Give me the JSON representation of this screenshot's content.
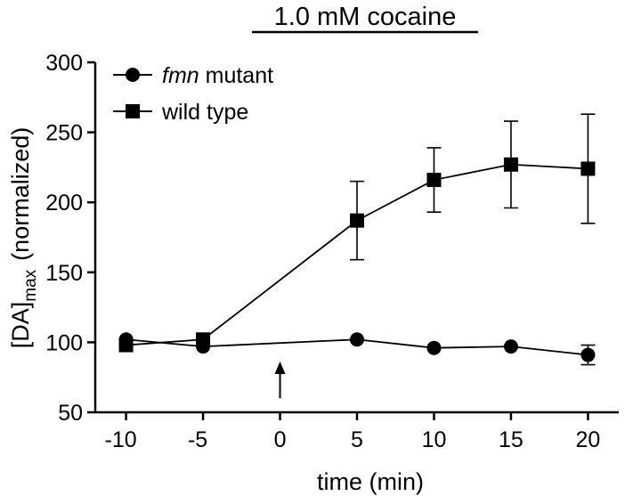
{
  "chart_data": {
    "type": "line",
    "title": "1.0 mM cocaine",
    "xlabel": "time (min)",
    "ylabel": {
      "main": "[DA]",
      "subscript": "max",
      "suffix": "(normalized)"
    },
    "x": [
      -10,
      -5,
      5,
      10,
      15,
      20
    ],
    "xticks": [
      -10,
      -5,
      0,
      5,
      10,
      15,
      20
    ],
    "xlim": [
      -12,
      22
    ],
    "ylim": [
      50,
      300
    ],
    "yticks": [
      50,
      100,
      150,
      200,
      250,
      300
    ],
    "grid": false,
    "legend_position": "top-left",
    "series": [
      {
        "name_italic": "fmn",
        "name_rest": " mutant",
        "marker": "circle",
        "values": [
          102,
          97,
          102,
          96,
          97,
          91
        ],
        "error": [
          0,
          0,
          0,
          0,
          0,
          7
        ]
      },
      {
        "name": "wild type",
        "marker": "square",
        "values": [
          98,
          102,
          187,
          216,
          227,
          224
        ],
        "error": [
          0,
          0,
          28,
          23,
          31,
          39
        ]
      }
    ],
    "annotations": [
      {
        "type": "arrow",
        "x": 0,
        "y_from": 60,
        "y_to": 85
      }
    ],
    "colors": {
      "series": "#000000"
    }
  }
}
